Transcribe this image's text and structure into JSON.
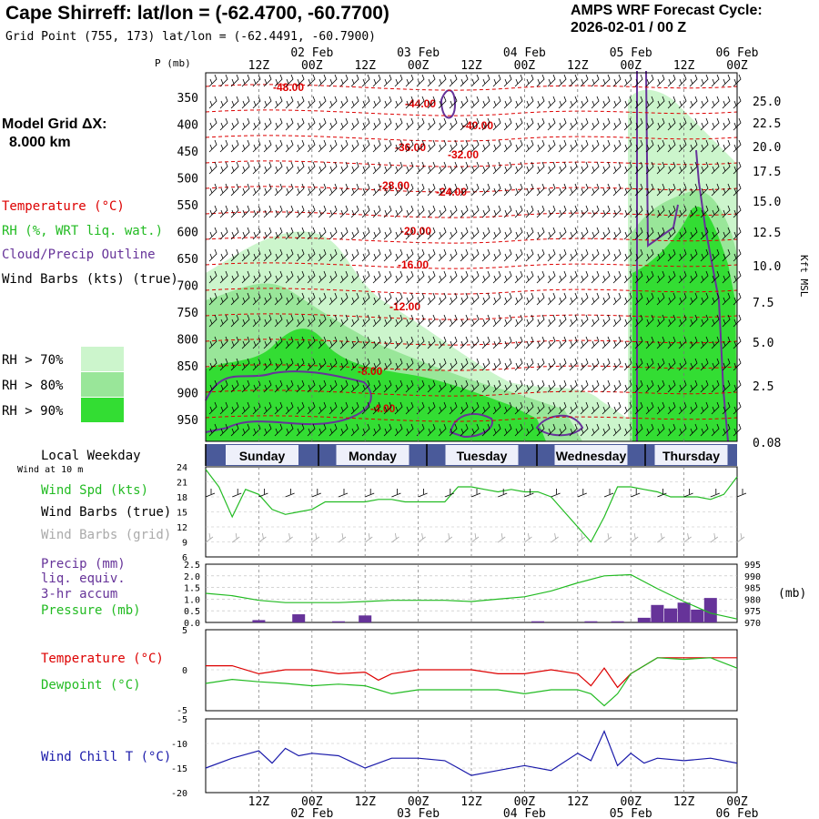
{
  "header": {
    "title": "Cape Shirreff:  lat/lon = (-62.4700, -60.7700)",
    "grid_point": "Grid Point (755, 173) lat/lon = (-62.4491, -60.7900)",
    "cycle_title": "AMPS WRF Forecast Cycle:",
    "cycle_time": "2026-02-01 / 00  Z"
  },
  "model_grid": {
    "label": "Model Grid ΔX:",
    "value": "8.000 km"
  },
  "colors": {
    "temperature": "#dd0000",
    "rh": "#22bb22",
    "cloud": "#663399",
    "wind": "#000000",
    "wind_grid": "#aaaaaa",
    "pressure": "#22bb22",
    "wind_chill": "#1a1aaa",
    "rh70": "#ccf5cc",
    "rh80": "#99e699",
    "rh90": "#33dd33",
    "weekday_band_dark": "#4a5a9a"
  },
  "legends": {
    "temperature": "Temperature (°C)",
    "rh": "RH (%, WRT liq. wat.)",
    "cloud": "Cloud/Precip Outline",
    "wind_barbs": "Wind Barbs (kts) (true)",
    "rh70": "RH > 70%",
    "rh80": "RH > 80%",
    "rh90": "RH > 90%",
    "local_weekday": "Local Weekday",
    "wind_at": "Wind at 10 m",
    "wind_spd": "Wind Spd (kts)",
    "wind_barbs_true": "Wind Barbs (true)",
    "wind_barbs_grid": "Wind Barbs (grid)",
    "precip_1": "Precip (mm)",
    "precip_2": "liq. equiv.",
    "precip_3": "3-hr accum",
    "pressure": "Pressure (mb)",
    "temperature2": "Temperature (°C)",
    "dewpoint": "Dewpoint (°C)",
    "wind_chill": "Wind Chill T (°C)"
  },
  "chart_data": [
    {
      "name": "time-height cross-section",
      "type": "heatmap",
      "ylabel_left": "P (mb)",
      "ylabel_right": "Kft MSL",
      "time_hours": [
        0,
        120
      ],
      "pressure_ticks": [
        350,
        400,
        450,
        500,
        550,
        600,
        650,
        700,
        750,
        800,
        850,
        900,
        950
      ],
      "height_ticks": [
        "25.0",
        "22.5",
        "20.0",
        "17.5",
        "15.0",
        "12.5",
        "10.0",
        "7.5",
        "5.0",
        "2.5",
        "0.08"
      ],
      "time_labels_top": [
        "12Z",
        "00Z",
        "12Z",
        "00Z",
        "12Z",
        "00Z",
        "12Z",
        "00Z",
        "12Z",
        "00Z"
      ],
      "date_labels": [
        "02 Feb",
        "03 Feb",
        "04 Feb",
        "05 Feb",
        "06 Feb"
      ],
      "temperature_labels": [
        "-48.00",
        "-44.00",
        "-40.00",
        "-36.00",
        "-32.00",
        "-28.00",
        "-24.00",
        "-20.00",
        "-16.00",
        "-12.00",
        "-8.00",
        "-4.00"
      ]
    },
    {
      "name": "weekday",
      "type": "table",
      "days": [
        "Sunday",
        "Monday",
        "Tuesday",
        "Wednesday",
        "Thursday"
      ]
    },
    {
      "name": "wind speed",
      "type": "line",
      "yticks": [
        6,
        9,
        12,
        15,
        18,
        21,
        24
      ],
      "ylim": [
        6,
        24
      ],
      "x": [
        0,
        3,
        6,
        9,
        12,
        15,
        18,
        21,
        24,
        27,
        30,
        33,
        36,
        39,
        42,
        45,
        48,
        51,
        54,
        57,
        60,
        63,
        66,
        69,
        72,
        75,
        78,
        81,
        84,
        87,
        90,
        93,
        96,
        99,
        102,
        105,
        108,
        111,
        114,
        117,
        120
      ],
      "series": [
        {
          "name": "Wind Spd (kts)",
          "values": [
            23.5,
            20,
            14,
            19.5,
            18.5,
            15.5,
            14.5,
            15,
            15.5,
            17,
            17,
            17,
            17,
            17.5,
            17.5,
            17,
            17,
            17,
            17,
            20,
            20,
            19.5,
            19,
            19.5,
            19,
            19,
            18,
            15,
            12,
            9,
            14,
            20,
            20,
            19.5,
            19,
            18,
            18,
            18,
            17.5,
            18.5,
            22
          ]
        }
      ]
    },
    {
      "name": "precip and pressure",
      "type": "bar",
      "yticks_left": [
        "0.0",
        "0.5",
        "1.0",
        "1.5",
        "2.0",
        "2.5"
      ],
      "yticks_right": [
        970,
        975,
        980,
        985,
        990,
        995
      ],
      "ylim_left": [
        0,
        2.5
      ],
      "ylim_right": [
        970,
        995
      ],
      "right_unit": "(mb)",
      "precip_x": [
        12,
        21,
        30,
        36,
        75,
        87,
        93,
        99,
        102,
        105,
        108,
        111,
        114
      ],
      "precip_mm": [
        0.1,
        0.35,
        0.05,
        0.3,
        0.05,
        0.05,
        0.05,
        0.2,
        0.75,
        0.6,
        0.85,
        0.55,
        1.05
      ],
      "pressure_x": [
        0,
        6,
        12,
        18,
        24,
        30,
        36,
        42,
        48,
        54,
        60,
        66,
        72,
        78,
        84,
        90,
        96,
        102,
        108,
        114,
        120
      ],
      "pressure_mb": [
        982.5,
        981.5,
        979.5,
        978.5,
        978.5,
        978.5,
        979,
        979.5,
        979.5,
        979.5,
        979,
        980,
        981,
        983.5,
        987,
        990,
        990.5,
        984.5,
        979,
        974,
        971.5
      ]
    },
    {
      "name": "temperature and dewpoint",
      "type": "line",
      "yticks": [
        -5,
        0,
        5
      ],
      "ylim": [
        -5,
        5
      ],
      "x": [
        0,
        6,
        12,
        18,
        24,
        30,
        36,
        39,
        42,
        48,
        54,
        60,
        66,
        72,
        78,
        84,
        87,
        90,
        93,
        96,
        102,
        108,
        114,
        120
      ],
      "series": [
        {
          "name": "Temperature (°C)",
          "values": [
            0.5,
            0.5,
            -0.5,
            0,
            0,
            -0.5,
            -0.3,
            -1.3,
            -0.5,
            0,
            0,
            0,
            -0.5,
            -0.5,
            0,
            -0.5,
            -2,
            0.2,
            -2.2,
            -0.5,
            1.5,
            1.5,
            1.5,
            1.5
          ]
        },
        {
          "name": "Dewpoint (°C)",
          "values": [
            -1.7,
            -1.2,
            -1.5,
            -1.7,
            -2,
            -1.8,
            -2,
            -2.5,
            -3,
            -2.5,
            -2.5,
            -2.5,
            -2.5,
            -3,
            -2.5,
            -2.5,
            -3,
            -4.5,
            -3,
            -0.5,
            1.5,
            1.3,
            1.5,
            0.2
          ]
        }
      ]
    },
    {
      "name": "wind chill",
      "type": "line",
      "yticks": [
        -5,
        -10,
        -15,
        -20
      ],
      "ylim": [
        -20,
        -5
      ],
      "x": [
        0,
        6,
        12,
        15,
        18,
        21,
        24,
        30,
        36,
        42,
        48,
        54,
        60,
        66,
        72,
        78,
        84,
        87,
        90,
        93,
        96,
        99,
        102,
        108,
        114,
        120
      ],
      "series": [
        {
          "name": "Wind Chill T (°C)",
          "values": [
            -15,
            -13,
            -11.5,
            -14,
            -11,
            -12.5,
            -12,
            -12.5,
            -15,
            -13,
            -13,
            -13.5,
            -16.5,
            -15.5,
            -14.5,
            -15.5,
            -12,
            -13.5,
            -7.5,
            -14.5,
            -12,
            -14,
            -13,
            -13.5,
            -13,
            -14
          ]
        }
      ]
    }
  ]
}
